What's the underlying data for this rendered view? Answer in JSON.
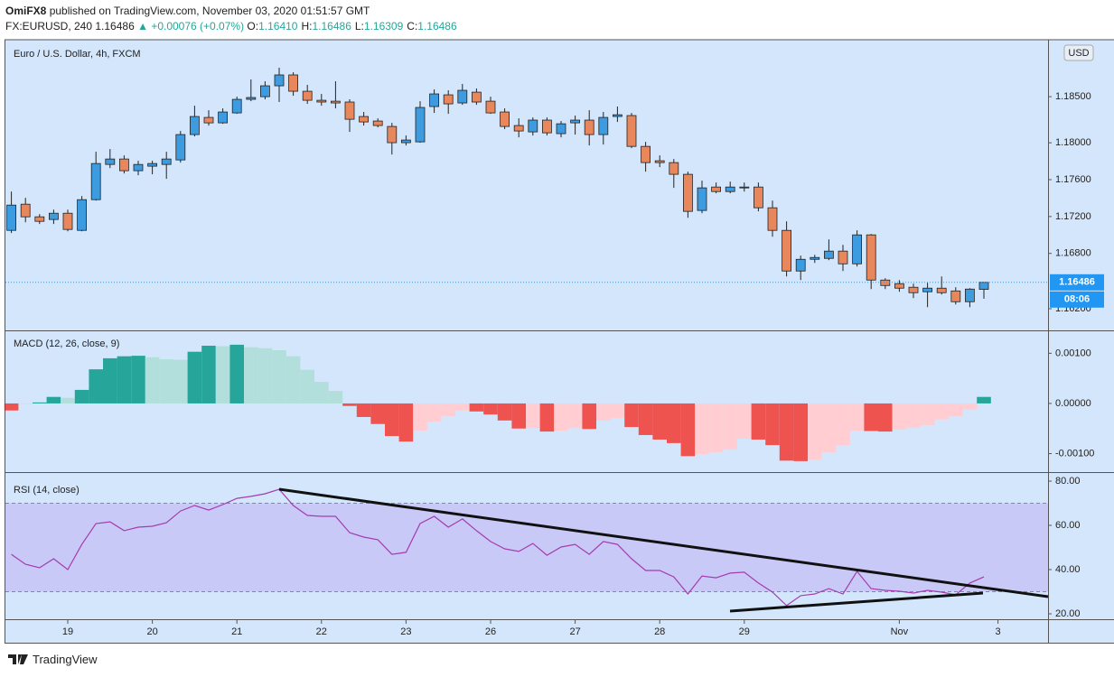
{
  "header": {
    "author": "OmiFX8",
    "published": "published on TradingView.com, November 03, 2020 01:51:57 GMT",
    "symbol": "FX:EURUSD, 240",
    "last": "1.16486",
    "change": "▲ +0.00076 (+0.07%)",
    "ohlc": [
      {
        "label": "O:",
        "value": "1.16410"
      },
      {
        "label": "H:",
        "value": "1.16486"
      },
      {
        "label": "L:",
        "value": "1.16309"
      },
      {
        "label": "C:",
        "value": "1.16486"
      }
    ]
  },
  "footer": {
    "brand": "TradingView"
  },
  "chart_data": [
    {
      "type": "candlestick",
      "title": "Euro / U.S. Dollar, 4h, FXCM",
      "currency": "USD",
      "last_price": "1.16486",
      "countdown": "08:06",
      "up_color": "#3d9be0",
      "down_color": "#e8875c",
      "background": "#d3e6fb",
      "categories": [
        null,
        null,
        null,
        null,
        "19",
        null,
        null,
        null,
        null,
        null,
        "20",
        null,
        null,
        null,
        null,
        null,
        "21",
        null,
        null,
        null,
        null,
        null,
        "22",
        null,
        null,
        null,
        null,
        null,
        "23",
        null,
        null,
        null,
        null,
        null,
        "26",
        null,
        null,
        null,
        null,
        null,
        "27",
        null,
        null,
        null,
        null,
        null,
        "28",
        null,
        null,
        null,
        null,
        null,
        "29",
        null,
        null,
        null,
        null,
        null,
        null,
        null,
        null,
        null,
        null,
        "Nov",
        null,
        null,
        null,
        null,
        null,
        null,
        "3",
        null,
        null,
        null
      ],
      "open": [
        1.1705,
        1.17334,
        1.17197,
        1.17168,
        1.17236,
        1.1705,
        1.17383,
        1.17765,
        1.17824,
        1.17697,
        1.17746,
        1.17765,
        1.17814,
        1.18089,
        1.18275,
        1.18216,
        1.18324,
        1.18471,
        1.185,
        1.18618,
        1.18736,
        1.18559,
        1.18461,
        1.18451,
        1.18442,
        1.18285,
        1.18236,
        1.18177,
        1.18001,
        1.1801,
        1.18393,
        1.1852,
        1.18432,
        1.18549,
        1.18451,
        1.18334,
        1.18187,
        1.18118,
        1.18246,
        1.18099,
        1.18216,
        1.18246,
        1.18089,
        1.18285,
        1.18295,
        1.17961,
        1.17805,
        1.17785,
        1.17658,
        1.17266,
        1.1752,
        1.17471,
        1.17511,
        1.1752,
        1.17295,
        1.1705,
        1.16609,
        1.16736,
        1.16746,
        1.16825,
        1.16687,
        1.17001,
        1.16511,
        1.16472,
        1.16433,
        1.16384,
        1.16423,
        1.16393,
        1.16276,
        1.1641,
        null,
        null,
        null,
        null
      ],
      "high": [
        1.17471,
        1.17403,
        1.17226,
        1.17275,
        1.17275,
        1.17422,
        1.17903,
        1.17932,
        1.17863,
        1.17805,
        1.17805,
        1.17903,
        1.18128,
        1.18402,
        1.18353,
        1.18373,
        1.185,
        1.18687,
        1.18667,
        1.18814,
        1.18765,
        1.18628,
        1.1853,
        1.18667,
        1.18471,
        1.18334,
        1.18265,
        1.18216,
        1.18079,
        1.18451,
        1.18579,
        1.18569,
        1.18638,
        1.18589,
        1.185,
        1.18373,
        1.18265,
        1.18275,
        1.18275,
        1.18236,
        1.18295,
        1.18353,
        1.18334,
        1.18393,
        1.18324,
        1.1801,
        1.17863,
        1.17824,
        1.17687,
        1.17589,
        1.17569,
        1.17579,
        1.17569,
        1.17569,
        1.17373,
        1.17148,
        1.16776,
        1.16785,
        1.16952,
        1.16893,
        1.1705,
        1.17011,
        1.16531,
        1.16511,
        1.16472,
        1.16482,
        1.1655,
        1.16433,
        1.16423,
        1.16486,
        null,
        null,
        null,
        null
      ],
      "low": [
        1.17021,
        1.17138,
        1.17119,
        1.17119,
        1.1704,
        1.1704,
        1.17373,
        1.17726,
        1.17667,
        1.17648,
        1.17658,
        1.17609,
        1.17785,
        1.18069,
        1.18187,
        1.18206,
        1.18314,
        1.18451,
        1.18471,
        1.18442,
        1.1851,
        1.18422,
        1.18402,
        1.18373,
        1.18118,
        1.18187,
        1.18167,
        1.17873,
        1.17971,
        1.18001,
        1.18324,
        1.18314,
        1.18412,
        1.18412,
        1.18314,
        1.18148,
        1.18059,
        1.18079,
        1.18079,
        1.18059,
        1.18089,
        1.17971,
        1.17981,
        1.18226,
        1.17942,
        1.17687,
        1.17736,
        1.17511,
        1.17187,
        1.17236,
        1.17452,
        1.17452,
        1.17471,
        1.17256,
        1.16981,
        1.1655,
        1.16511,
        1.16697,
        1.16727,
        1.16609,
        1.16658,
        1.16413,
        1.16413,
        1.16384,
        1.16315,
        1.16217,
        1.16354,
        1.16246,
        1.16217,
        1.16309,
        null,
        null,
        null,
        null
      ],
      "close": [
        1.17324,
        1.17197,
        1.17148,
        1.17236,
        1.1706,
        1.17383,
        1.17775,
        1.17824,
        1.17697,
        1.17765,
        1.17775,
        1.17824,
        1.18089,
        1.18285,
        1.18216,
        1.18334,
        1.18471,
        1.18491,
        1.18618,
        1.18736,
        1.18559,
        1.18461,
        1.18442,
        1.18432,
        1.18255,
        1.18226,
        1.18187,
        1.18001,
        1.1803,
        1.18383,
        1.1853,
        1.18422,
        1.18569,
        1.18442,
        1.18324,
        1.18177,
        1.18128,
        1.18246,
        1.18108,
        1.18206,
        1.18246,
        1.18089,
        1.18275,
        1.18304,
        1.17961,
        1.17785,
        1.17785,
        1.17658,
        1.17256,
        1.17511,
        1.17471,
        1.1752,
        1.1752,
        1.17295,
        1.1705,
        1.16609,
        1.16736,
        1.16756,
        1.16825,
        1.16687,
        1.17001,
        1.16511,
        1.16452,
        1.16423,
        1.16374,
        1.16423,
        1.16374,
        1.16276,
        1.16413,
        1.16486,
        null,
        null,
        null,
        null
      ],
      "ylim": [
        1.15975,
        1.19108
      ],
      "yticks": [
        {
          "value": 1.162,
          "label": "1.16200"
        },
        {
          "value": 1.168,
          "label": "1.16800"
        },
        {
          "value": 1.172,
          "label": "1.17200"
        },
        {
          "value": 1.176,
          "label": "1.17600"
        },
        {
          "value": 1.18,
          "label": "1.18000"
        },
        {
          "value": 1.185,
          "label": "1.18500"
        }
      ]
    },
    {
      "type": "histogram",
      "title": "MACD (12, 26, close, 9)",
      "colors": {
        "above_rising": "#26a69a",
        "above_falling": "#b2dfdb",
        "below_falling": "#ef5350",
        "below_rising": "#ffcdd2"
      },
      "values": [
        -0.00014,
        -2e-05,
        2e-05,
        0.00013,
        0.00011,
        0.00027,
        0.00068,
        0.0009,
        0.00094,
        0.00095,
        0.00092,
        0.00088,
        0.00087,
        0.00103,
        0.00115,
        0.00114,
        0.00117,
        0.00112,
        0.0011,
        0.00106,
        0.00094,
        0.00067,
        0.00043,
        0.00025,
        -5e-05,
        -0.00027,
        -0.00041,
        -0.00065,
        -0.00076,
        -0.00054,
        -0.00036,
        -0.00025,
        -0.00014,
        -0.00016,
        -0.00022,
        -0.00034,
        -0.0005,
        -0.00049,
        -0.00056,
        -0.00054,
        -0.00049,
        -0.00051,
        -0.00034,
        -0.00029,
        -0.00047,
        -0.00063,
        -0.00072,
        -0.00079,
        -0.00105,
        -0.00101,
        -0.00097,
        -0.00092,
        -0.0007,
        -0.00072,
        -0.00083,
        -0.00114,
        -0.00115,
        -0.00112,
        -0.00097,
        -0.00083,
        -0.00054,
        -0.00055,
        -0.00056,
        -0.00052,
        -0.00048,
        -0.00043,
        -0.00032,
        -0.00025,
        -0.00012,
        0.00013,
        null,
        null,
        null,
        null
      ],
      "ylim": [
        -0.00135,
        0.00142
      ],
      "yticks": [
        {
          "value": 0.001,
          "label": "0.00100"
        },
        {
          "value": 0,
          "label": "0.00000"
        },
        {
          "value": -0.001,
          "label": "-0.00100"
        }
      ]
    },
    {
      "type": "line",
      "title": "RSI (14, close)",
      "color": "#a43cae",
      "band": [
        30,
        70
      ],
      "band_color": "#c9c9f7",
      "values": [
        46.9,
        42.4,
        40.8,
        44.9,
        40.0,
        51.4,
        60.8,
        61.6,
        57.6,
        59.2,
        59.6,
        61.2,
        66.5,
        69.0,
        66.9,
        69.4,
        72.2,
        73.1,
        74.3,
        76.3,
        69.0,
        64.5,
        64.1,
        64.1,
        56.7,
        54.7,
        53.5,
        46.9,
        47.8,
        60.8,
        64.1,
        59.2,
        62.9,
        57.6,
        52.7,
        49.4,
        48.2,
        51.8,
        46.5,
        50.2,
        51.4,
        46.9,
        52.7,
        51.4,
        44.9,
        39.6,
        39.6,
        36.7,
        29.0,
        37.1,
        36.3,
        38.4,
        38.8,
        33.9,
        29.8,
        23.7,
        28.2,
        29.0,
        31.4,
        29.0,
        39.2,
        31.4,
        30.6,
        30.2,
        29.4,
        30.6,
        29.8,
        28.6,
        33.9,
        36.7,
        null,
        null,
        null,
        null
      ],
      "ylim": [
        17.96,
        83.27
      ],
      "yticks": [
        {
          "value": 20,
          "label": "20.00"
        },
        {
          "value": 40,
          "label": "40.00"
        },
        {
          "value": 60,
          "label": "60.00"
        },
        {
          "value": 80,
          "label": "80.00"
        }
      ]
    }
  ]
}
